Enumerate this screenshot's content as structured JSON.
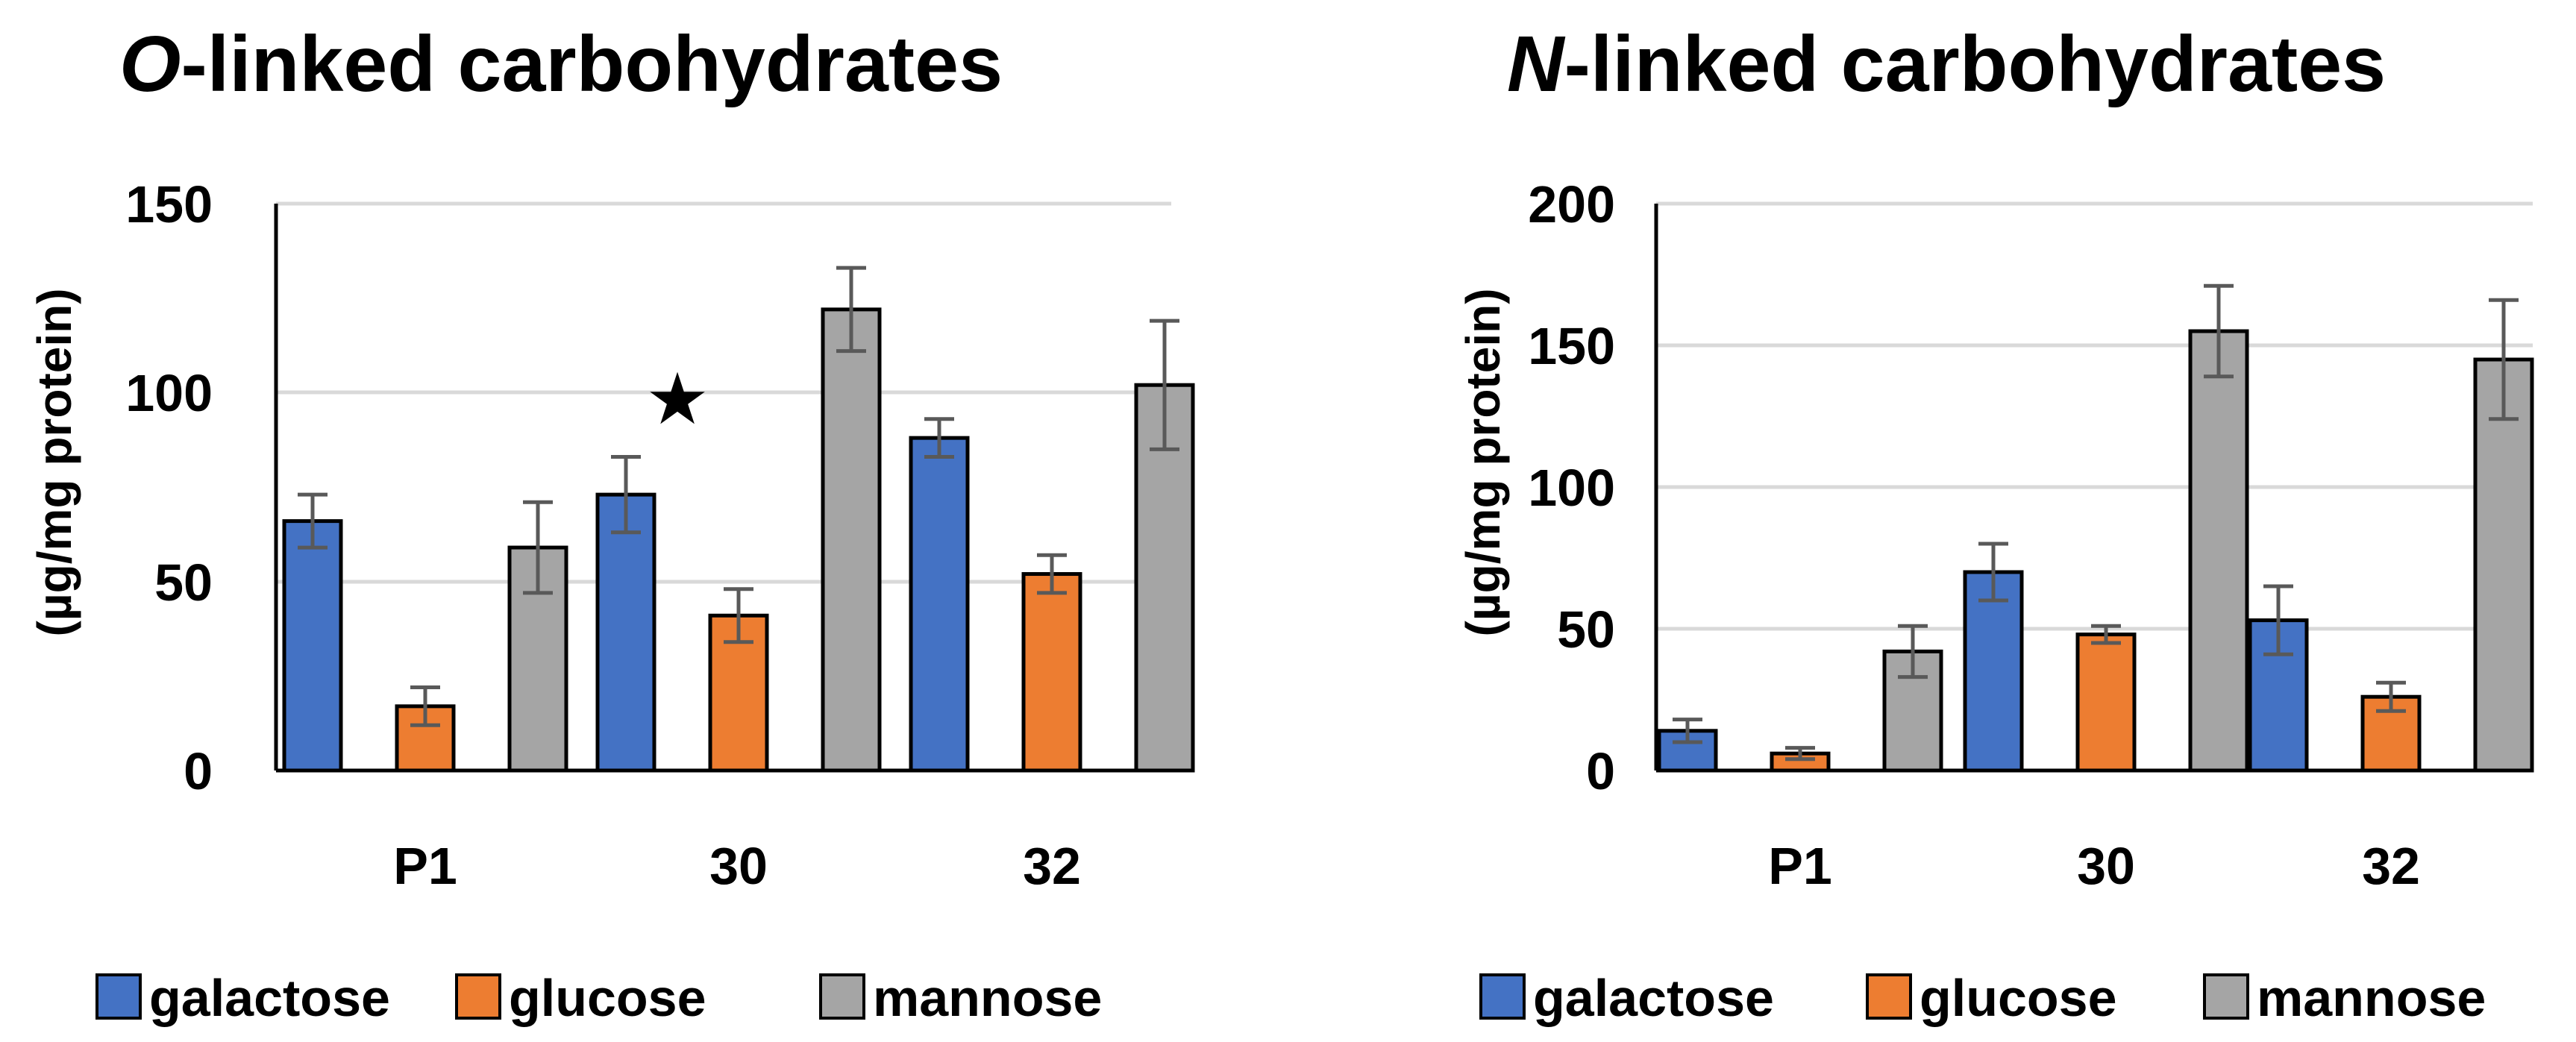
{
  "colors": {
    "galactose": "#4472c4",
    "glucose": "#ed7d31",
    "mannose": "#a5a5a5",
    "gridline": "#d9d9d9",
    "errorbar": "#595959"
  },
  "chart_data": [
    {
      "type": "bar",
      "title_italic": "O",
      "title_rest": "-linked carbohydrates",
      "ylabel": "(µg/mg protein)",
      "xlabel": "",
      "ylim": [
        0,
        150
      ],
      "yticks": [
        "0",
        "50",
        "100",
        "150"
      ],
      "ytick_values": [
        0,
        50,
        100,
        150
      ],
      "categories": [
        "P1",
        "30",
        "32"
      ],
      "legend_position": "bottom",
      "series": [
        {
          "name": "galactose",
          "values": [
            66,
            73,
            88
          ],
          "errors": [
            7,
            10,
            5
          ]
        },
        {
          "name": "glucose",
          "values": [
            17,
            41,
            52
          ],
          "errors": [
            5,
            7,
            5
          ]
        },
        {
          "name": "mannose",
          "values": [
            59,
            122,
            102
          ],
          "errors": [
            12,
            11,
            17
          ]
        }
      ],
      "annotations": [
        {
          "text": "★",
          "category": "30",
          "series": "galactose",
          "y": 98
        }
      ]
    },
    {
      "type": "bar",
      "title_italic": "N",
      "title_rest": "-linked carbohydrates",
      "ylabel": "(µg/mg protein)",
      "xlabel": "",
      "ylim": [
        0,
        200
      ],
      "yticks": [
        "0",
        "50",
        "100",
        "150",
        "200"
      ],
      "ytick_values": [
        0,
        50,
        100,
        150,
        200
      ],
      "categories": [
        "P1",
        "30",
        "32"
      ],
      "legend_position": "bottom",
      "series": [
        {
          "name": "galactose",
          "values": [
            14,
            70,
            53
          ],
          "errors": [
            4,
            10,
            12
          ]
        },
        {
          "name": "glucose",
          "values": [
            6,
            48,
            26
          ],
          "errors": [
            2,
            3,
            5
          ]
        },
        {
          "name": "mannose",
          "values": [
            42,
            155,
            145
          ],
          "errors": [
            9,
            16,
            21
          ]
        }
      ],
      "annotations": []
    }
  ]
}
